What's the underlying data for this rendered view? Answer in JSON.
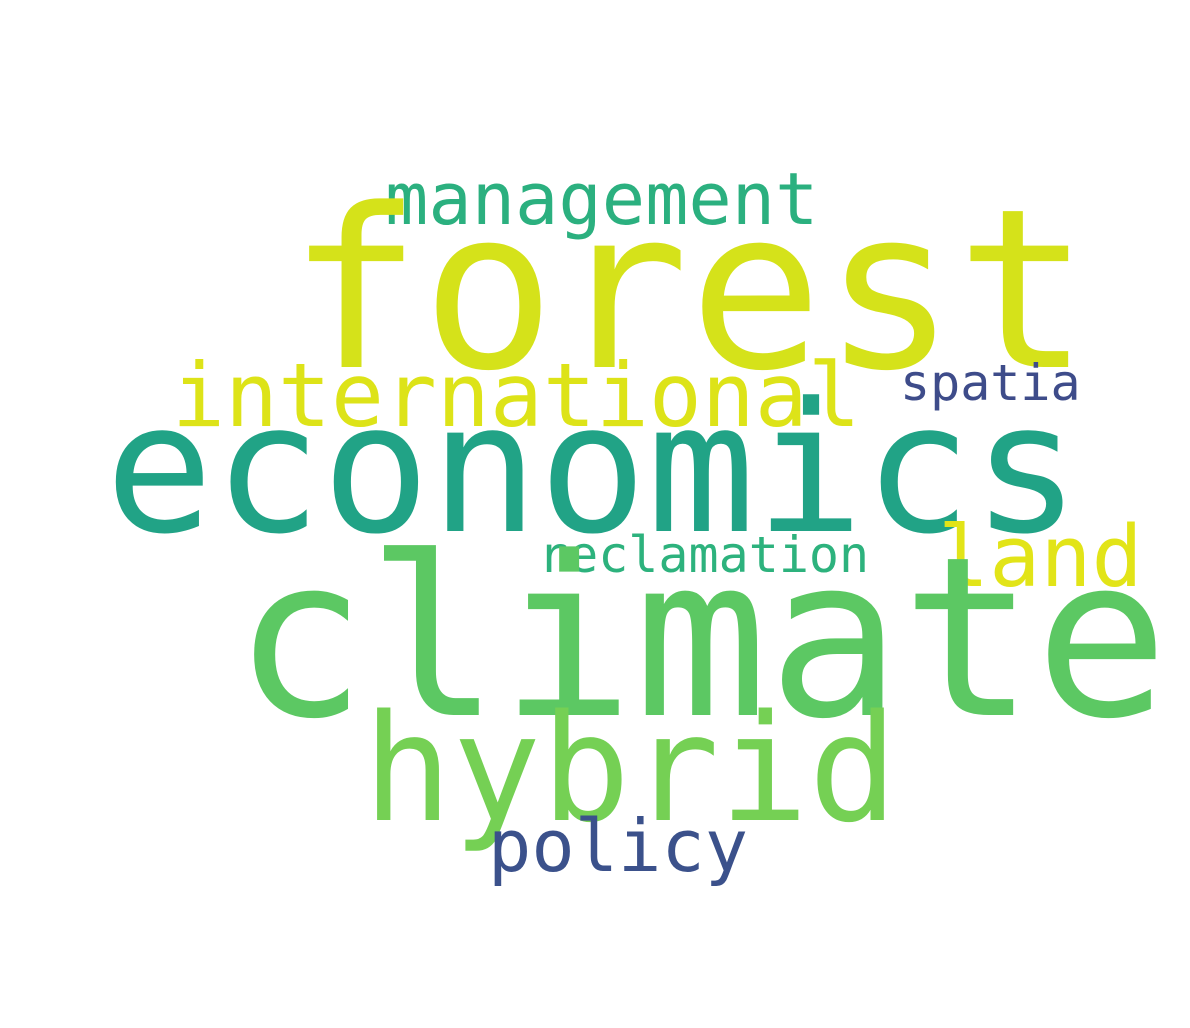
{
  "words": {
    "management": {
      "text": "management",
      "color": "#2bb07f"
    },
    "forest": {
      "text": "forest",
      "color": "#d5e21a"
    },
    "international": {
      "text": "international",
      "color": "#dde318"
    },
    "spatia": {
      "text": "spatia",
      "color": "#3e4c8a"
    },
    "economics": {
      "text": "economics",
      "color": "#21a386"
    },
    "reclamation": {
      "text": "reclamation",
      "color": "#2db27d"
    },
    "land": {
      "text": "land",
      "color": "#e2e418"
    },
    "climate": {
      "text": "climate",
      "color": "#5cc863"
    },
    "hybrid": {
      "text": "hybrid",
      "color": "#75d054"
    },
    "policy": {
      "text": "policy",
      "color": "#3b518b"
    }
  }
}
